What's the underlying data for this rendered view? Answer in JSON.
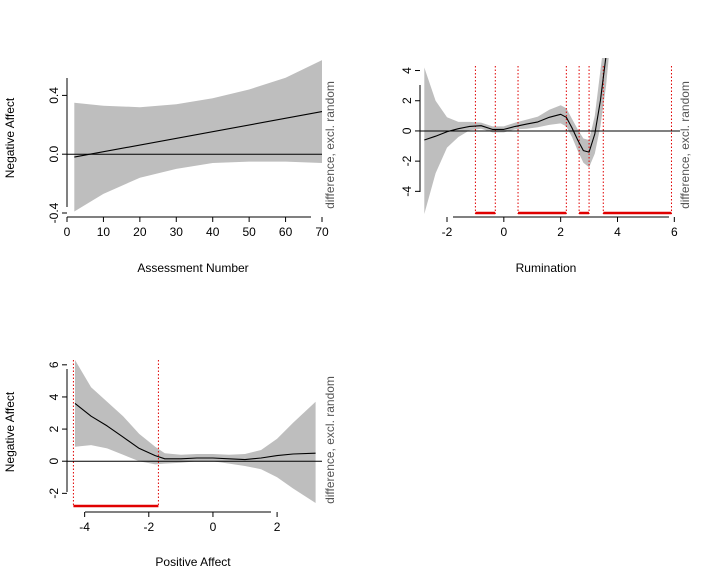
{
  "chart_data": [
    {
      "type": "line",
      "xlabel": "Assessment Number",
      "ylabel": "Negative Affect",
      "right_label": "difference, excl. random",
      "xlim": [
        0,
        70
      ],
      "ylim": [
        -0.4,
        0.6
      ],
      "xticks": [
        0,
        10,
        20,
        30,
        40,
        50,
        60,
        70
      ],
      "xtick_labels": [
        "0",
        "10",
        "20",
        "30",
        "40",
        "50",
        "60",
        "70"
      ],
      "yticks": [
        -0.4,
        0.0,
        0.4
      ],
      "ytick_labels": [
        "-0.4",
        "0.0",
        "0.4"
      ],
      "reference_line": 0,
      "x": [
        2,
        70
      ],
      "y": [
        -0.02,
        0.29
      ],
      "band_x": [
        2,
        10,
        20,
        30,
        40,
        50,
        60,
        70
      ],
      "band_upper": [
        0.35,
        0.33,
        0.32,
        0.34,
        0.38,
        0.44,
        0.52,
        0.64
      ],
      "band_lower": [
        -0.39,
        -0.27,
        -0.16,
        -0.1,
        -0.06,
        -0.05,
        -0.05,
        -0.06
      ],
      "significant_x": [],
      "significant_ranges": []
    },
    {
      "type": "line",
      "xlabel": "Rumination",
      "ylabel": "",
      "right_label": "difference, excl. random",
      "xlim": [
        -2.95,
        6.2
      ],
      "ylim": [
        -5.5,
        4.3
      ],
      "xticks": [
        -2,
        0,
        2,
        4,
        6
      ],
      "xtick_labels": [
        "-2",
        "0",
        "2",
        "4",
        "6"
      ],
      "yticks": [
        -4,
        -2,
        0,
        2,
        4
      ],
      "ytick_labels": [
        "-4",
        "-2",
        "0",
        "2",
        "4"
      ],
      "reference_line": 0,
      "x": [
        -2.8,
        -2.4,
        -2.0,
        -1.6,
        -1.2,
        -0.8,
        -0.4,
        0.0,
        0.4,
        0.8,
        1.2,
        1.6,
        2.0,
        2.2,
        2.4,
        2.6,
        2.8,
        3.0,
        3.2,
        3.4,
        3.6,
        3.75
      ],
      "y": [
        -0.6,
        -0.35,
        -0.05,
        0.15,
        0.3,
        0.35,
        0.1,
        0.1,
        0.3,
        0.45,
        0.6,
        0.9,
        1.1,
        0.9,
        0.2,
        -0.6,
        -1.3,
        -1.4,
        -0.2,
        2.0,
        5.0,
        8.0
      ],
      "band_x": [
        -2.8,
        -2.4,
        -2.0,
        -1.6,
        -1.2,
        -0.8,
        -0.4,
        0.0,
        0.4,
        0.8,
        1.2,
        1.6,
        2.0,
        2.2,
        2.4,
        2.6,
        2.8,
        3.0,
        3.2,
        3.4,
        3.6,
        3.75
      ],
      "band_upper": [
        4.2,
        2.0,
        0.9,
        0.6,
        0.6,
        0.55,
        0.3,
        0.3,
        0.55,
        0.75,
        0.95,
        1.4,
        1.7,
        1.5,
        0.8,
        0.1,
        -0.5,
        -0.6,
        1.0,
        4.0,
        7.0,
        10.0
      ],
      "band_lower": [
        -5.5,
        -2.8,
        -1.1,
        -0.4,
        0.05,
        0.15,
        -0.1,
        -0.1,
        0.1,
        0.15,
        0.25,
        0.4,
        0.5,
        0.3,
        -0.4,
        -1.3,
        -2.1,
        -2.4,
        -1.5,
        0.3,
        3.0,
        6.0
      ],
      "significant_x": [
        -1.0,
        -0.3,
        0.5,
        2.2,
        2.65,
        3.0,
        3.5,
        5.9
      ],
      "significant_ranges": [
        [
          -1.0,
          -0.3
        ],
        [
          0.5,
          2.2
        ],
        [
          2.65,
          3.0
        ],
        [
          3.5,
          5.9
        ]
      ]
    },
    {
      "type": "line",
      "xlabel": "Positive Affect",
      "ylabel": "Negative Affect",
      "right_label": "difference, excl. random",
      "xlim": [
        -4.55,
        3.4
      ],
      "ylim": [
        -2.85,
        6.3
      ],
      "xticks": [
        -4,
        -2,
        0,
        2
      ],
      "xtick_labels": [
        "-4",
        "-2",
        "0",
        "2"
      ],
      "yticks": [
        -2,
        0,
        2,
        4,
        6
      ],
      "ytick_labels": [
        "-2",
        "0",
        "2",
        "4",
        "6"
      ],
      "reference_line": 0,
      "x": [
        -4.3,
        -3.8,
        -3.3,
        -2.8,
        -2.3,
        -1.8,
        -1.5,
        -1.0,
        -0.5,
        0.0,
        0.5,
        1.0,
        1.5,
        2.0,
        2.5,
        3.2
      ],
      "y": [
        3.6,
        2.8,
        2.2,
        1.5,
        0.8,
        0.35,
        0.15,
        0.15,
        0.2,
        0.2,
        0.15,
        0.1,
        0.2,
        0.35,
        0.45,
        0.5
      ],
      "band_x": [
        -4.3,
        -3.8,
        -3.3,
        -2.8,
        -2.3,
        -1.8,
        -1.5,
        -1.0,
        -0.5,
        0.0,
        0.5,
        1.0,
        1.5,
        2.0,
        2.5,
        3.2
      ],
      "band_upper": [
        6.3,
        4.6,
        3.7,
        2.8,
        1.7,
        0.9,
        0.5,
        0.4,
        0.45,
        0.45,
        0.4,
        0.45,
        0.7,
        1.4,
        2.4,
        3.7
      ],
      "band_lower": [
        0.9,
        1.0,
        0.8,
        0.4,
        0.0,
        -0.2,
        -0.15,
        -0.1,
        0.0,
        0.0,
        -0.15,
        -0.3,
        -0.5,
        -1.0,
        -1.7,
        -2.6
      ],
      "significant_x": [
        -4.35,
        -1.7
      ],
      "significant_ranges": [
        [
          -4.35,
          -1.7
        ]
      ]
    }
  ]
}
